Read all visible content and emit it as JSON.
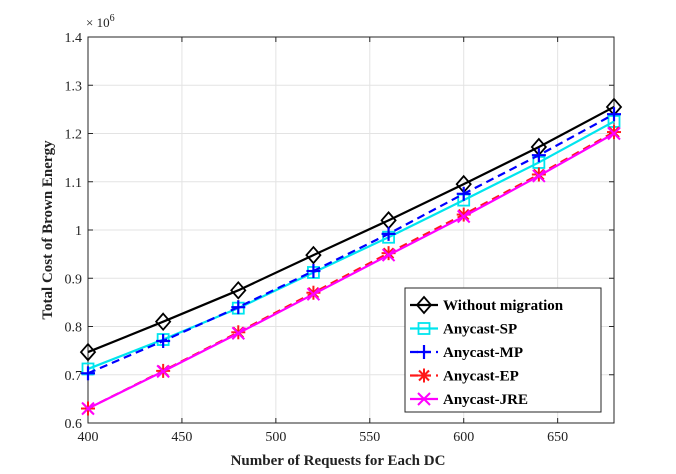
{
  "chart_data": {
    "type": "line",
    "xlabel": "Number of Requests for Each DC",
    "ylabel": "Total Cost of Brown Energy",
    "y_exponent_label": "× 10",
    "y_exponent_power": "6",
    "xlim": [
      400,
      680
    ],
    "ylim": [
      0.6,
      1.4
    ],
    "x_ticks": [
      400,
      450,
      500,
      550,
      600,
      650
    ],
    "x_tick_labels": [
      "400",
      "450",
      "500",
      "550",
      "600",
      "650"
    ],
    "y_ticks": [
      0.6,
      0.7,
      0.8,
      0.9,
      1.0,
      1.1,
      1.2,
      1.3,
      1.4
    ],
    "y_tick_labels": [
      "0.6",
      "0.7",
      "0.8",
      "0.9",
      "1",
      "1.1",
      "1.2",
      "1.3",
      "1.4"
    ],
    "grid": true,
    "legend_position": "bottom-right",
    "x": [
      400,
      440,
      480,
      520,
      560,
      600,
      640,
      680
    ],
    "series": [
      {
        "name": "Without migration",
        "color": "#000000",
        "dash": "solid",
        "marker": "diamond",
        "values": [
          0.747,
          0.81,
          0.875,
          0.948,
          1.02,
          1.095,
          1.172,
          1.255
        ]
      },
      {
        "name": "Anycast-SP",
        "color": "#00e5ee",
        "dash": "solid",
        "marker": "square",
        "values": [
          0.712,
          0.773,
          0.838,
          0.912,
          0.985,
          1.062,
          1.14,
          1.225
        ]
      },
      {
        "name": "Anycast-MP",
        "color": "#0000ff",
        "dash": "dashed",
        "marker": "plus",
        "values": [
          0.703,
          0.77,
          0.84,
          0.915,
          0.992,
          1.075,
          1.155,
          1.24
        ]
      },
      {
        "name": "Anycast-EP",
        "color": "#ff1a1a",
        "dash": "dashed",
        "marker": "asterisk",
        "values": [
          0.63,
          0.708,
          0.788,
          0.87,
          0.952,
          1.032,
          1.115,
          1.203
        ]
      },
      {
        "name": "Anycast-JRE",
        "color": "#ff00ff",
        "dash": "solid",
        "marker": "x",
        "values": [
          0.63,
          0.707,
          0.786,
          0.867,
          0.948,
          1.028,
          1.112,
          1.2
        ]
      }
    ]
  }
}
